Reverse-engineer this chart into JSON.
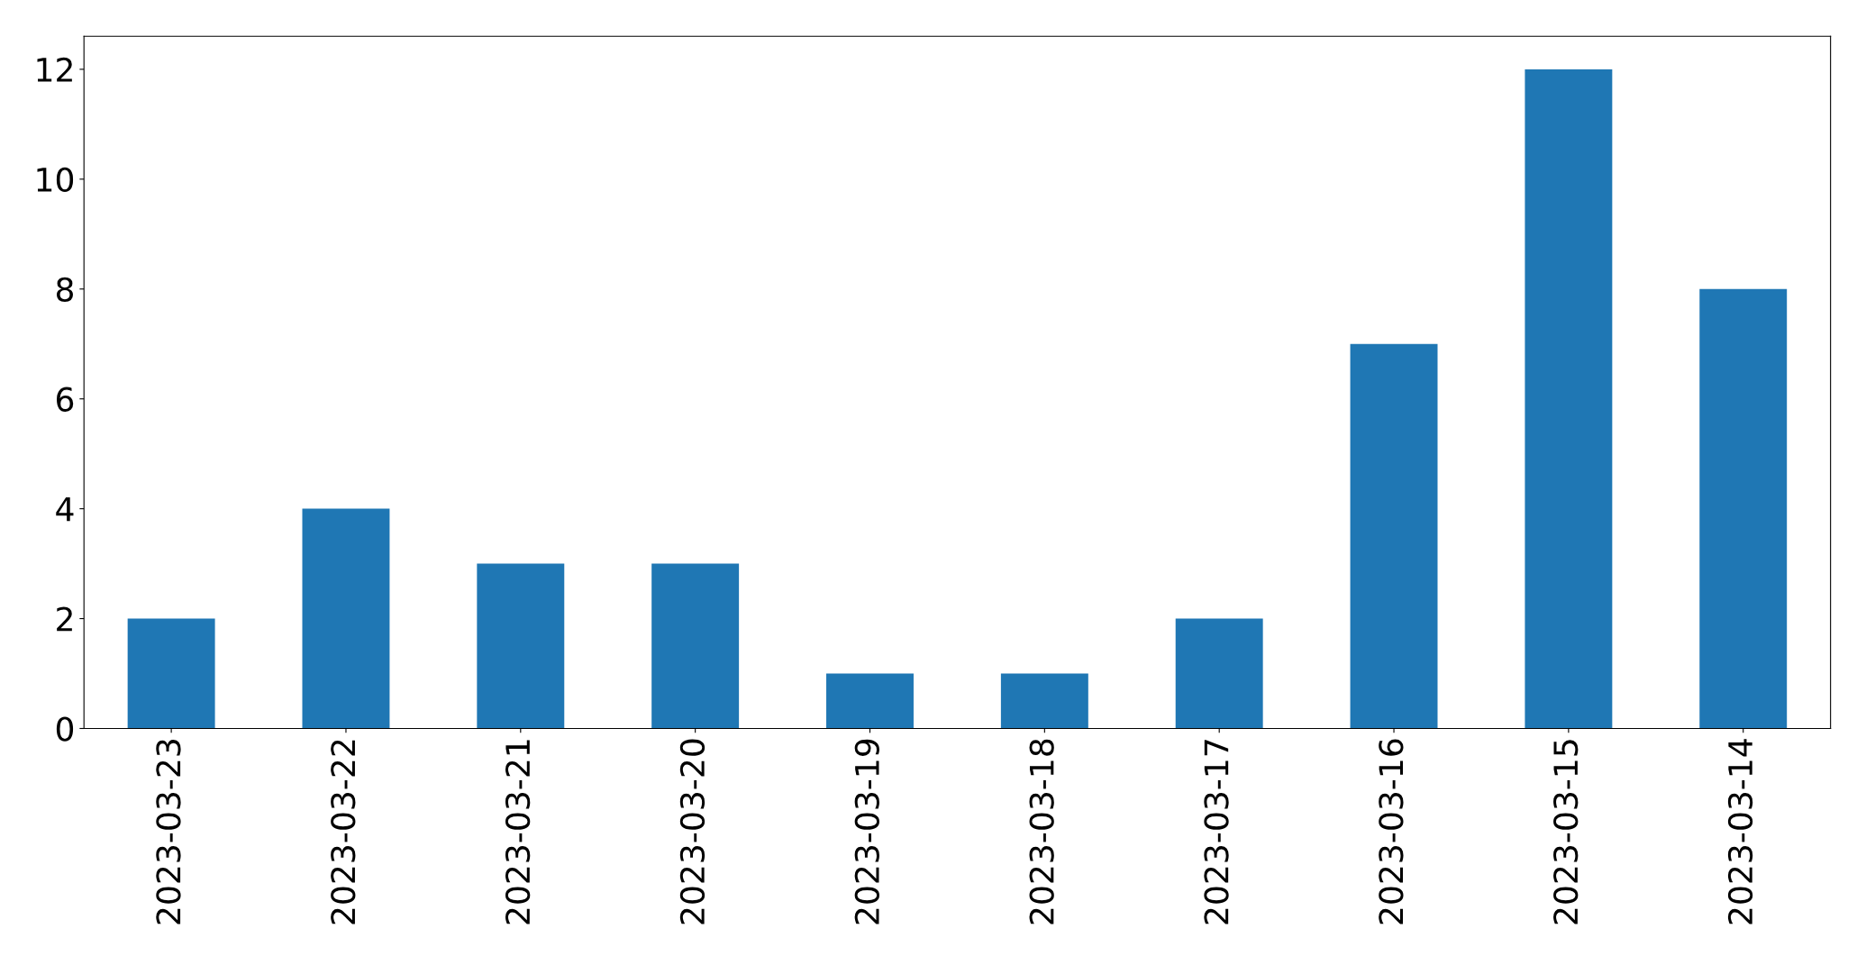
{
  "chart_data": {
    "type": "bar",
    "categories": [
      "2023-03-23",
      "2023-03-22",
      "2023-03-21",
      "2023-03-20",
      "2023-03-19",
      "2023-03-18",
      "2023-03-17",
      "2023-03-16",
      "2023-03-15",
      "2023-03-14"
    ],
    "values": [
      2,
      4,
      3,
      3,
      1,
      1,
      2,
      7,
      12,
      8
    ],
    "color": "#1f77b4",
    "ylim": [
      0,
      12.6
    ],
    "yticks": [
      0,
      2,
      4,
      6,
      8,
      10,
      12
    ],
    "grid": false,
    "legend": false
  }
}
